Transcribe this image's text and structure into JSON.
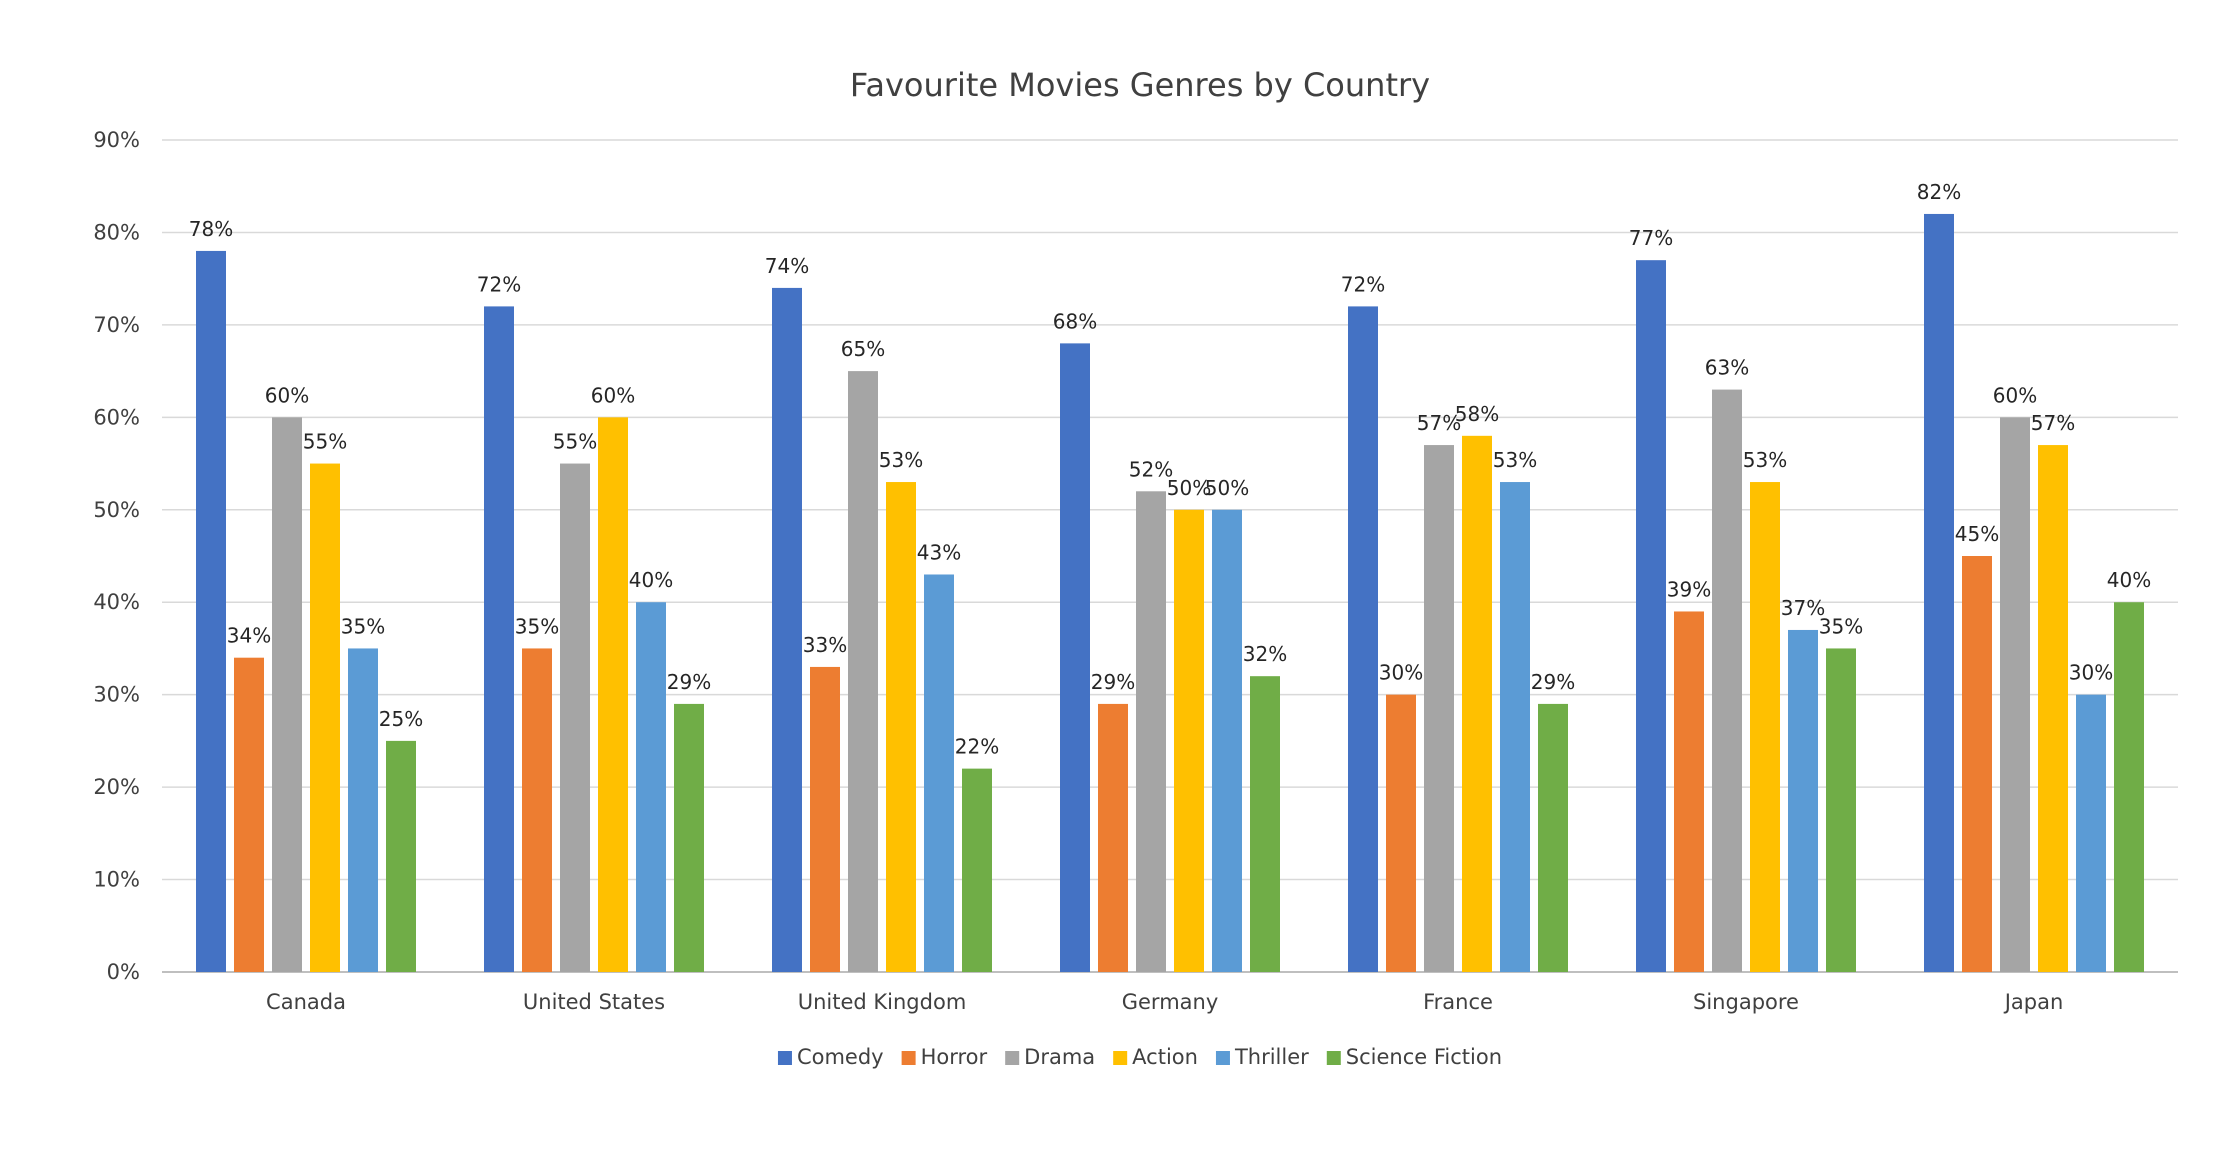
{
  "chart_data": {
    "type": "bar",
    "title": "Favourite Movies Genres by Country",
    "xlabel": "",
    "ylabel": "",
    "ylim": [
      0,
      90
    ],
    "y_ticks": [
      0,
      10,
      20,
      30,
      40,
      50,
      60,
      70,
      80,
      90
    ],
    "y_tick_labels": [
      "0%",
      "10%",
      "20%",
      "30%",
      "40%",
      "50%",
      "60%",
      "70%",
      "80%",
      "90%"
    ],
    "value_suffix": "%",
    "grid": true,
    "legend_position": "bottom",
    "categories": [
      "Canada",
      "United States",
      "United Kingdom",
      "Germany",
      "France",
      "Singapore",
      "Japan"
    ],
    "series": [
      {
        "name": "Comedy",
        "color": "#4472C4",
        "values": [
          78,
          72,
          74,
          68,
          72,
          77,
          82
        ]
      },
      {
        "name": "Horror",
        "color": "#ED7D31",
        "values": [
          34,
          35,
          33,
          29,
          30,
          39,
          45
        ]
      },
      {
        "name": "Drama",
        "color": "#A5A5A5",
        "values": [
          60,
          55,
          65,
          52,
          57,
          63,
          60
        ]
      },
      {
        "name": "Action",
        "color": "#FFC000",
        "values": [
          55,
          60,
          53,
          50,
          58,
          53,
          57
        ]
      },
      {
        "name": "Thriller",
        "color": "#5B9BD5",
        "values": [
          35,
          40,
          43,
          50,
          53,
          37,
          30
        ]
      },
      {
        "name": "Science Fiction",
        "color": "#70AD47",
        "values": [
          25,
          29,
          22,
          32,
          29,
          35,
          40
        ]
      }
    ]
  }
}
